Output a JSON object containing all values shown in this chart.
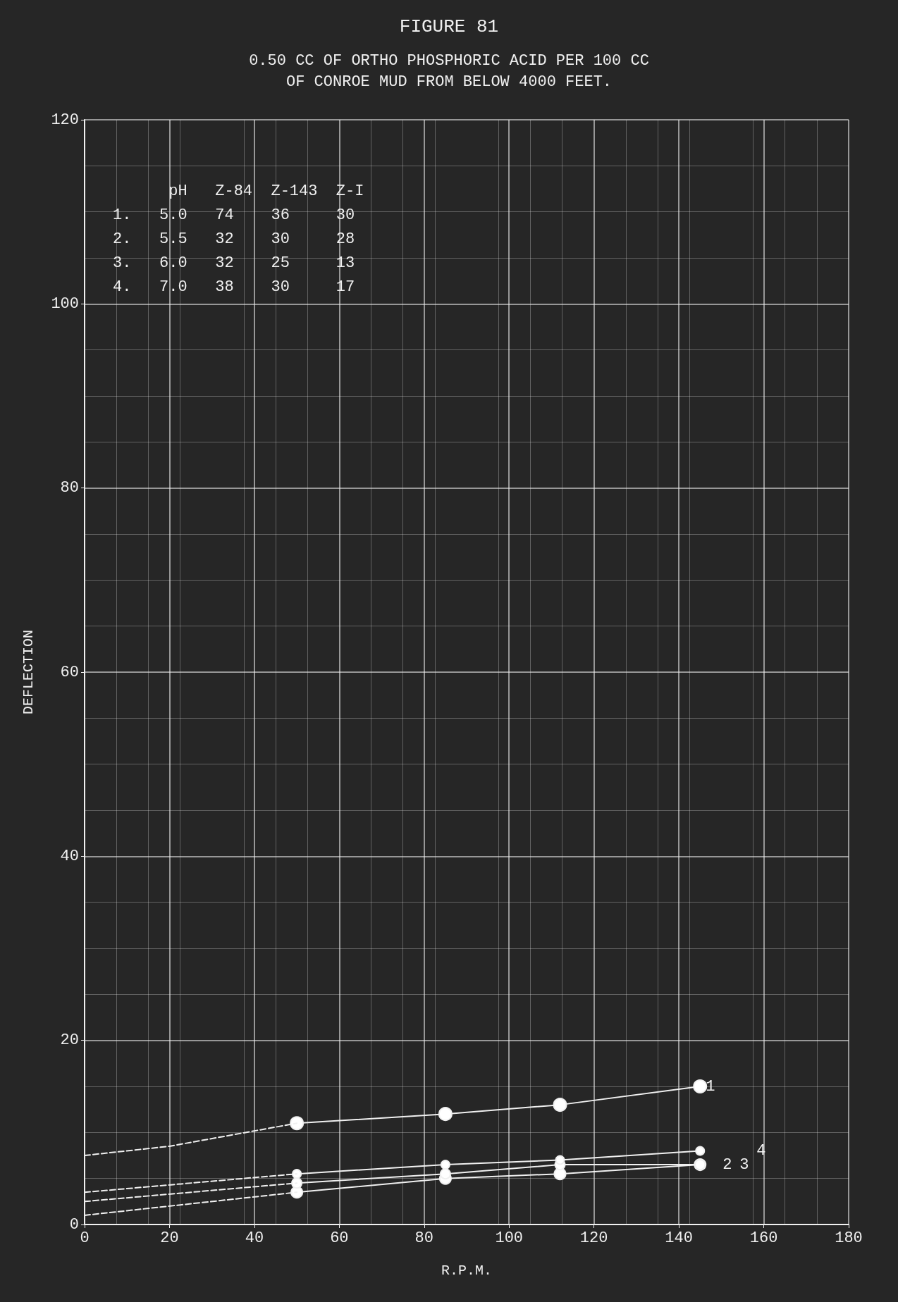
{
  "chart_data": {
    "type": "line",
    "title": "FIGURE 81",
    "subtitle": "0.50 CC OF ORTHO PHOSPHORIC ACID PER 100 CC\nOF CONROE MUD FROM BELOW 4000 FEET.",
    "xlabel": "R.P.M.",
    "ylabel": "DEFLECTION",
    "xlim": [
      0,
      180
    ],
    "xticks": [
      0,
      20,
      40,
      60,
      80,
      100,
      120,
      140,
      160,
      180
    ],
    "ylim": [
      0,
      120
    ],
    "yticks": [
      0,
      20,
      40,
      60,
      80,
      100,
      120
    ],
    "grid": true,
    "marker": "circle",
    "line_style": "solid",
    "annotations": [
      "      pH   Z-84  Z-143  Z-I",
      "1.   5.0   74    36     30",
      "2.   5.5   32    30     28",
      "3.   6.0   32    25     13",
      "4.   7.0   38    30     17"
    ],
    "series": [
      {
        "name": "1",
        "color": "#f0f0f0",
        "x": [
          50,
          85,
          112,
          145
        ],
        "values": [
          11,
          12,
          13,
          15
        ]
      },
      {
        "name": "2",
        "color": "#f0f0f0",
        "x": [
          50,
          85,
          112,
          145
        ],
        "values": [
          3.5,
          5,
          5.5,
          6.5
        ]
      },
      {
        "name": "3",
        "color": "#f0f0f0",
        "x": [
          50,
          85,
          112,
          145
        ],
        "values": [
          4.5,
          5.5,
          6.5,
          6.5
        ]
      },
      {
        "name": "4",
        "color": "#f0f0f0",
        "x": [
          50,
          85,
          112,
          145
        ],
        "values": [
          5.5,
          6.5,
          7,
          8
        ]
      },
      {
        "color": "#f0f0f0",
        "line_style": "dashed",
        "marker": "none",
        "x": [
          0,
          20,
          50
        ],
        "values": [
          7.5,
          8.5,
          11
        ]
      },
      {
        "color": "#f0f0f0",
        "line_style": "dashed",
        "marker": "none",
        "x": [
          0,
          50
        ],
        "values": [
          1,
          3.5
        ]
      },
      {
        "color": "#f0f0f0",
        "line_style": "dashed",
        "marker": "none",
        "x": [
          0,
          50
        ],
        "values": [
          2.5,
          4.5
        ]
      },
      {
        "color": "#f0f0f0",
        "line_style": "dashed",
        "marker": "none",
        "x": [
          0,
          50
        ],
        "values": [
          3.5,
          5.5
        ]
      }
    ]
  }
}
